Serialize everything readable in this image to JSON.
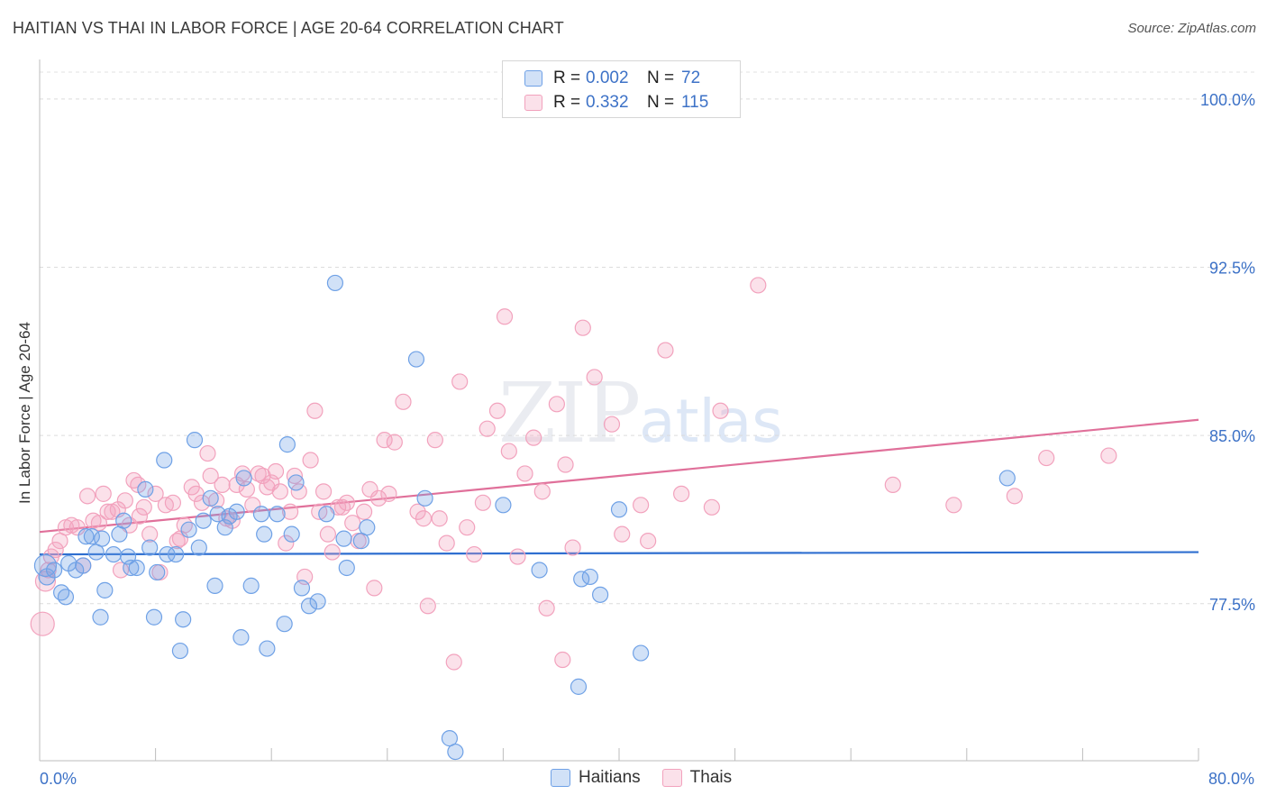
{
  "title": "HAITIAN VS THAI IN LABOR FORCE | AGE 20-64 CORRELATION CHART",
  "source": "Source: ZipAtlas.com",
  "watermark": {
    "zip": "ZIP",
    "atlas": "atlas"
  },
  "legend": {
    "rows": [
      {
        "r_label": "R =",
        "r_value": "0.002",
        "n_label": "N =",
        "n_value": "72",
        "color": "#6fa1e6"
      },
      {
        "r_label": "R =",
        "r_value": "0.332",
        "n_label": "N =",
        "n_value": "115",
        "color": "#f2a2bd"
      }
    ]
  },
  "bottom_legend": {
    "haitians": "Haitians",
    "thais": "Thais"
  },
  "colors": {
    "blue_fill": "rgba(111,161,230,0.32)",
    "blue_stroke": "#6fa1e6",
    "blue_line": "#2f6fd0",
    "pink_fill": "rgba(242,162,189,0.32)",
    "pink_stroke": "#f2a2bd",
    "pink_line": "#e0709a",
    "tick_text": "#3d72c7"
  },
  "chart_data": {
    "type": "scatter",
    "title": "HAITIAN VS THAI IN LABOR FORCE | AGE 20-64 CORRELATION CHART",
    "xlabel": "",
    "ylabel": "In Labor Force | Age 20-64",
    "xlim": [
      0,
      80
    ],
    "ylim": [
      70.5,
      101.2
    ],
    "x_tick_labels": [
      {
        "value": 0,
        "label": "0.0%"
      },
      {
        "value": 80,
        "label": "80.0%"
      }
    ],
    "y_ticks": [
      {
        "value": 77.5,
        "label": "77.5%"
      },
      {
        "value": 85.0,
        "label": "85.0%"
      },
      {
        "value": 92.5,
        "label": "92.5%"
      },
      {
        "value": 100.0,
        "label": "100.0%"
      }
    ],
    "x_minor_ticks": [
      8,
      16,
      24,
      32,
      40,
      48,
      56,
      64,
      72,
      80
    ],
    "grid": true,
    "legend_position": "top-center",
    "series": [
      {
        "name": "Haitians",
        "trend": {
          "x": [
            0,
            80
          ],
          "y": [
            79.7,
            79.8
          ]
        },
        "points": [
          [
            0.4,
            79.2
          ],
          [
            0.5,
            78.7
          ],
          [
            1.0,
            79.0
          ],
          [
            1.5,
            78.0
          ],
          [
            1.8,
            77.8
          ],
          [
            2.0,
            79.3
          ],
          [
            2.5,
            79.0
          ],
          [
            3.0,
            79.2
          ],
          [
            3.2,
            80.5
          ],
          [
            3.6,
            80.5
          ],
          [
            3.9,
            79.8
          ],
          [
            4.3,
            80.4
          ],
          [
            4.5,
            78.1
          ],
          [
            4.2,
            76.9
          ],
          [
            5.1,
            79.7
          ],
          [
            5.5,
            80.6
          ],
          [
            5.8,
            81.2
          ],
          [
            6.1,
            79.6
          ],
          [
            6.3,
            79.1
          ],
          [
            6.7,
            79.1
          ],
          [
            7.3,
            82.6
          ],
          [
            7.6,
            80.0
          ],
          [
            7.9,
            76.9
          ],
          [
            8.1,
            78.9
          ],
          [
            8.6,
            83.9
          ],
          [
            8.8,
            79.7
          ],
          [
            9.4,
            79.7
          ],
          [
            9.7,
            75.4
          ],
          [
            9.9,
            76.8
          ],
          [
            10.3,
            80.8
          ],
          [
            10.7,
            84.8
          ],
          [
            11.0,
            80.0
          ],
          [
            11.3,
            81.2
          ],
          [
            11.8,
            82.2
          ],
          [
            12.1,
            78.3
          ],
          [
            12.3,
            81.5
          ],
          [
            12.8,
            80.9
          ],
          [
            13.1,
            81.4
          ],
          [
            13.6,
            81.6
          ],
          [
            13.9,
            76.0
          ],
          [
            14.1,
            83.1
          ],
          [
            14.6,
            78.3
          ],
          [
            15.3,
            81.5
          ],
          [
            15.5,
            80.6
          ],
          [
            15.7,
            75.5
          ],
          [
            16.4,
            81.5
          ],
          [
            16.9,
            76.6
          ],
          [
            17.1,
            84.6
          ],
          [
            17.4,
            80.6
          ],
          [
            17.7,
            82.9
          ],
          [
            18.1,
            78.2
          ],
          [
            18.6,
            77.4
          ],
          [
            19.2,
            77.6
          ],
          [
            19.8,
            81.5
          ],
          [
            20.4,
            91.8
          ],
          [
            21.0,
            80.4
          ],
          [
            21.2,
            79.1
          ],
          [
            22.2,
            80.3
          ],
          [
            22.6,
            80.9
          ],
          [
            26.0,
            88.4
          ],
          [
            26.6,
            82.2
          ],
          [
            28.3,
            71.5
          ],
          [
            28.7,
            70.9
          ],
          [
            32.0,
            81.9
          ],
          [
            34.5,
            79.0
          ],
          [
            37.2,
            73.8
          ],
          [
            37.4,
            78.6
          ],
          [
            38.0,
            78.7
          ],
          [
            38.7,
            77.9
          ],
          [
            40.0,
            81.7
          ],
          [
            41.5,
            75.3
          ],
          [
            66.8,
            83.1
          ]
        ],
        "sizes": {
          "0": 24,
          "1": 18
        }
      },
      {
        "name": "Thais",
        "trend": {
          "x": [
            0,
            80
          ],
          "y": [
            80.7,
            85.7
          ]
        },
        "points": [
          [
            0.2,
            76.6
          ],
          [
            0.4,
            78.5
          ],
          [
            0.6,
            79.0
          ],
          [
            0.8,
            79.6
          ],
          [
            1.1,
            79.9
          ],
          [
            1.4,
            80.3
          ],
          [
            1.8,
            80.9
          ],
          [
            2.2,
            81.0
          ],
          [
            2.6,
            80.9
          ],
          [
            3.0,
            79.2
          ],
          [
            3.3,
            82.3
          ],
          [
            3.7,
            81.2
          ],
          [
            4.1,
            81.1
          ],
          [
            4.4,
            82.4
          ],
          [
            4.7,
            81.6
          ],
          [
            5.0,
            81.6
          ],
          [
            5.4,
            81.7
          ],
          [
            5.6,
            79.0
          ],
          [
            5.9,
            82.1
          ],
          [
            6.2,
            81.0
          ],
          [
            6.5,
            83.0
          ],
          [
            6.8,
            82.8
          ],
          [
            6.9,
            81.4
          ],
          [
            7.2,
            81.8
          ],
          [
            7.6,
            80.6
          ],
          [
            8.0,
            82.4
          ],
          [
            8.3,
            78.9
          ],
          [
            8.7,
            81.9
          ],
          [
            9.2,
            82.0
          ],
          [
            9.5,
            80.3
          ],
          [
            9.7,
            80.4
          ],
          [
            10.0,
            81.0
          ],
          [
            10.5,
            82.7
          ],
          [
            10.8,
            82.4
          ],
          [
            11.2,
            82.0
          ],
          [
            11.6,
            84.2
          ],
          [
            11.8,
            83.2
          ],
          [
            12.2,
            82.1
          ],
          [
            12.6,
            82.8
          ],
          [
            12.9,
            81.3
          ],
          [
            13.3,
            81.2
          ],
          [
            13.6,
            82.8
          ],
          [
            14.0,
            83.3
          ],
          [
            14.3,
            82.6
          ],
          [
            14.7,
            81.9
          ],
          [
            15.1,
            83.3
          ],
          [
            15.4,
            83.2
          ],
          [
            15.7,
            82.7
          ],
          [
            16.0,
            82.9
          ],
          [
            16.3,
            83.4
          ],
          [
            16.6,
            82.5
          ],
          [
            17.0,
            80.2
          ],
          [
            17.3,
            81.6
          ],
          [
            17.6,
            83.2
          ],
          [
            17.9,
            82.5
          ],
          [
            18.3,
            78.7
          ],
          [
            18.7,
            83.9
          ],
          [
            19.0,
            86.1
          ],
          [
            19.3,
            81.6
          ],
          [
            19.6,
            82.5
          ],
          [
            19.9,
            80.6
          ],
          [
            20.2,
            79.8
          ],
          [
            20.6,
            81.8
          ],
          [
            20.9,
            81.8
          ],
          [
            21.2,
            82.0
          ],
          [
            21.6,
            81.1
          ],
          [
            22.0,
            80.3
          ],
          [
            22.4,
            81.6
          ],
          [
            22.8,
            82.6
          ],
          [
            23.1,
            78.2
          ],
          [
            23.4,
            82.2
          ],
          [
            23.8,
            84.8
          ],
          [
            24.1,
            82.4
          ],
          [
            24.5,
            84.7
          ],
          [
            25.1,
            86.5
          ],
          [
            26.1,
            81.6
          ],
          [
            26.5,
            81.3
          ],
          [
            26.8,
            77.4
          ],
          [
            27.3,
            84.8
          ],
          [
            27.6,
            81.3
          ],
          [
            28.1,
            80.2
          ],
          [
            28.6,
            74.9
          ],
          [
            29.0,
            87.4
          ],
          [
            29.5,
            80.9
          ],
          [
            30.0,
            79.7
          ],
          [
            30.6,
            82.0
          ],
          [
            30.9,
            85.3
          ],
          [
            31.6,
            86.1
          ],
          [
            32.1,
            90.3
          ],
          [
            32.4,
            84.3
          ],
          [
            33.0,
            79.6
          ],
          [
            33.5,
            83.3
          ],
          [
            34.1,
            84.9
          ],
          [
            34.7,
            82.5
          ],
          [
            35.0,
            77.3
          ],
          [
            35.7,
            86.4
          ],
          [
            36.1,
            75.0
          ],
          [
            36.3,
            83.7
          ],
          [
            36.8,
            80.0
          ],
          [
            37.5,
            89.8
          ],
          [
            38.3,
            87.6
          ],
          [
            39.5,
            85.5
          ],
          [
            40.2,
            80.6
          ],
          [
            41.5,
            81.9
          ],
          [
            42.0,
            80.3
          ],
          [
            43.2,
            88.8
          ],
          [
            44.3,
            82.4
          ],
          [
            46.4,
            81.8
          ],
          [
            47.0,
            86.1
          ],
          [
            49.6,
            91.7
          ],
          [
            58.9,
            82.8
          ],
          [
            63.1,
            81.9
          ],
          [
            67.3,
            82.3
          ],
          [
            69.5,
            84.0
          ],
          [
            73.8,
            84.1
          ]
        ],
        "sizes": {
          "0": 26,
          "1": 22
        }
      }
    ]
  }
}
